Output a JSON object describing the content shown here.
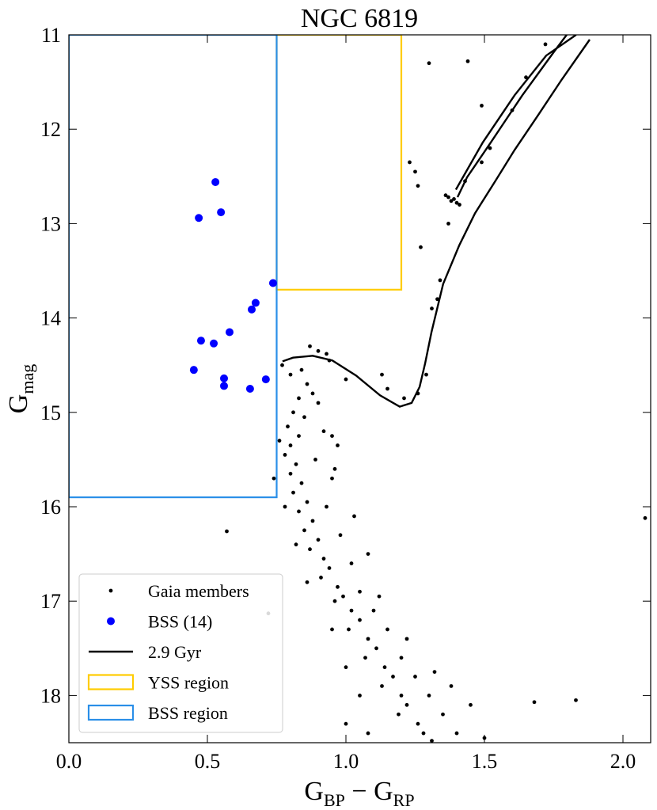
{
  "chart_data": {
    "type": "scatter",
    "title": "NGC 6819",
    "xlabel": [
      "G",
      "BP",
      " − G",
      "RP"
    ],
    "ylabel": [
      "G",
      "mag"
    ],
    "xlim": [
      0,
      2.1
    ],
    "ylim": [
      18.5,
      11
    ],
    "xticks": [
      {
        "value": 0,
        "label": "0.0"
      },
      0.5,
      {
        "value": 1,
        "label": "1.0"
      },
      1.5,
      {
        "value": 2,
        "label": "2.0"
      }
    ],
    "yticks": [
      11,
      12,
      13,
      14,
      15,
      16,
      17,
      18
    ],
    "regions": [
      {
        "name": "YSS region",
        "color": "#ffcc00",
        "x": [
          0.75,
          1.2
        ],
        "y": [
          11,
          13.7
        ]
      },
      {
        "name": "BSS region",
        "color": "#2a8fe8",
        "x": [
          0,
          0.75
        ],
        "y": [
          11,
          15.9
        ]
      }
    ],
    "series": [
      {
        "name": "Gaia members",
        "kind": "points",
        "color": "#000000",
        "size": 2.4,
        "x": [
          0.8,
          0.84,
          0.86,
          0.83,
          0.88,
          0.81,
          0.85,
          0.79,
          0.83,
          0.8,
          0.78,
          0.82,
          0.8,
          0.84,
          0.81,
          0.86,
          0.83,
          0.88,
          0.85,
          0.9,
          0.87,
          0.92,
          0.94,
          0.91,
          0.97,
          0.99,
          0.96,
          1.02,
          1.05,
          1.01,
          1.08,
          1.11,
          1.07,
          1.14,
          1.17,
          1.13,
          1.2,
          1.22,
          1.19,
          1.26,
          1.28,
          1.31,
          0.9,
          0.92,
          0.89,
          0.95,
          0.93,
          0.98,
          1.02,
          1.05,
          1.1,
          1.15,
          1.2,
          1.25,
          1.3,
          1.35,
          1.4,
          0.97,
          1.03,
          1.08,
          1.12,
          1.22,
          1.32,
          1.45,
          1.5,
          1.38,
          0.96,
          0.94,
          0.9,
          0.87,
          0.93,
          0.76,
          0.74,
          0.78,
          0.82,
          0.86,
          0.95,
          1.0,
          1.05,
          1.0,
          1.08,
          1.13,
          1.15,
          1.21,
          1.26,
          1.29,
          1.34,
          1.31,
          1.33,
          1.25,
          1.26,
          1.37,
          1.38,
          1.39,
          1.4,
          1.36,
          1.41,
          1.43,
          1.49,
          1.52,
          1.6,
          1.65,
          1.72,
          1.44,
          1.3,
          1.49,
          1.23,
          1.27,
          1.37,
          2.08,
          0.57,
          1.68,
          1.83,
          0.72,
          0.77,
          0.95,
          1.0
        ],
        "values": [
          14.6,
          14.55,
          14.7,
          14.85,
          14.8,
          15.0,
          15.05,
          15.15,
          15.25,
          15.35,
          15.45,
          15.55,
          15.65,
          15.75,
          15.85,
          15.95,
          16.05,
          16.15,
          16.25,
          16.35,
          16.45,
          16.55,
          16.65,
          16.75,
          16.85,
          16.95,
          17.0,
          17.1,
          17.2,
          17.3,
          17.4,
          17.5,
          17.6,
          17.7,
          17.8,
          17.9,
          18.0,
          18.1,
          18.2,
          18.3,
          18.4,
          18.48,
          14.9,
          15.2,
          15.5,
          15.7,
          16.0,
          16.3,
          16.6,
          16.9,
          17.1,
          17.3,
          17.6,
          17.8,
          18.0,
          18.2,
          18.4,
          15.35,
          16.1,
          16.5,
          16.95,
          17.4,
          17.75,
          18.1,
          18.45,
          17.9,
          15.6,
          14.45,
          14.35,
          14.3,
          14.38,
          15.3,
          15.7,
          16.0,
          16.4,
          16.8,
          17.3,
          17.7,
          18.0,
          18.3,
          18.4,
          14.6,
          14.75,
          14.85,
          14.8,
          14.6,
          13.6,
          13.9,
          13.8,
          12.45,
          12.6,
          12.72,
          12.76,
          12.74,
          12.78,
          12.7,
          12.8,
          12.55,
          12.35,
          12.2,
          11.8,
          11.45,
          11.1,
          11.28,
          11.3,
          11.75,
          12.35,
          13.25,
          13.0,
          16.12,
          16.26,
          18.07,
          18.05,
          17.13,
          14.5,
          15.25,
          14.65
        ]
      },
      {
        "name": "BSS (14)",
        "kind": "points",
        "color": "#0000ff",
        "size": 5,
        "x": [
          0.529,
          0.469,
          0.549,
          0.737,
          0.674,
          0.66,
          0.58,
          0.477,
          0.523,
          0.451,
          0.56,
          0.56,
          0.654,
          0.711
        ],
        "values": [
          12.56,
          12.94,
          12.88,
          13.63,
          13.84,
          13.91,
          14.15,
          14.24,
          14.27,
          14.55,
          14.64,
          14.72,
          14.75,
          14.65
        ]
      },
      {
        "name": "2.9 Gyr",
        "kind": "line",
        "color": "#000000",
        "x": [
          0.771,
          0.809,
          0.88,
          0.951,
          1.037,
          1.123,
          1.194,
          1.237,
          1.266,
          1.286,
          1.309,
          1.351,
          1.409,
          1.466,
          1.537,
          1.609,
          1.694,
          1.78,
          1.88,
          null,
          1.403,
          1.437,
          1.523,
          1.637,
          1.751,
          1.797,
          null,
          1.397,
          1.494,
          1.609,
          1.723,
          1.831
        ],
        "values": [
          14.46,
          14.42,
          14.4,
          14.45,
          14.61,
          14.82,
          14.94,
          14.9,
          14.73,
          14.48,
          14.15,
          13.64,
          13.23,
          12.89,
          12.56,
          12.22,
          11.85,
          11.47,
          11.05,
          null,
          12.72,
          12.51,
          12.14,
          11.64,
          11.18,
          11.0,
          null,
          12.64,
          12.14,
          11.64,
          11.22,
          11.0
        ]
      }
    ]
  }
}
